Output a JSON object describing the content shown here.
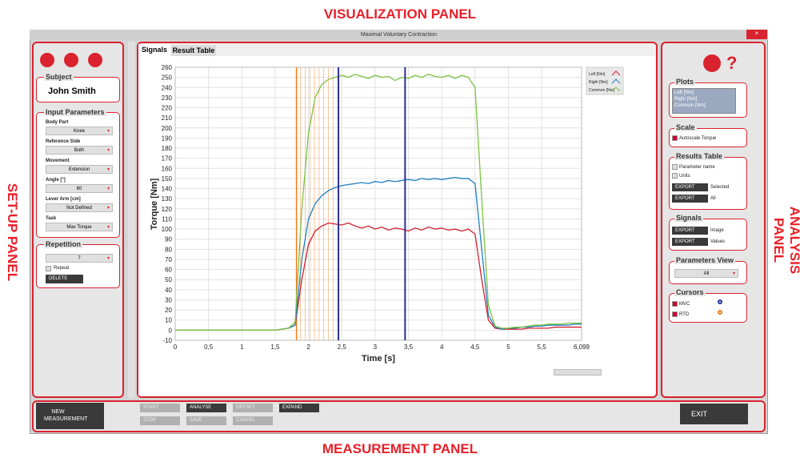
{
  "panel_labels": {
    "visualization": "VISUALIZATION PANEL",
    "setup": "SET-UP PANEL",
    "analysis": "ANALYSIS PANEL",
    "measurement": "MEASUREMENT PANEL"
  },
  "window_title": "Maximal Voluntary Contraction",
  "setup": {
    "subject_legend": "Subject",
    "subject_name": "John Smith",
    "input_legend": "Input Parameters",
    "fields": [
      {
        "label": "Body Part",
        "value": "Knee"
      },
      {
        "label": "Reference Side",
        "value": "Both"
      },
      {
        "label": "Movement",
        "value": "Extension"
      },
      {
        "label": "Angle [°]",
        "value": "60"
      },
      {
        "label": "Lever Arm [cm]",
        "value": "Not Defined"
      },
      {
        "label": "Task",
        "value": "Max Torque"
      }
    ],
    "repetition_legend": "Repetition",
    "repetition_value": "7",
    "repeat_label": "Repeat",
    "delete_button": "DELETE"
  },
  "tabs": [
    "Signals",
    "Result Table"
  ],
  "chart_data": {
    "type": "line",
    "ylabel": "Torque [Nm]",
    "xlabel": "Time [s]",
    "xlim": [
      0,
      6.099
    ],
    "ylim": [
      -10,
      260
    ],
    "yticks": [
      -10,
      0,
      10,
      20,
      30,
      40,
      50,
      60,
      70,
      80,
      90,
      100,
      110,
      120,
      130,
      140,
      150,
      160,
      170,
      180,
      190,
      200,
      210,
      220,
      230,
      240,
      250,
      260
    ],
    "xticks": [
      0,
      {
        "value": 0.5,
        "label": "0,5"
      },
      1,
      {
        "value": 1.5,
        "label": "1,5"
      },
      2,
      {
        "value": 2.5,
        "label": "2,5"
      },
      3,
      {
        "value": 3.5,
        "label": "3,5"
      },
      4,
      {
        "value": 4.5,
        "label": "4,5"
      },
      5,
      {
        "value": 5.5,
        "label": "5,5"
      },
      {
        "value": 6.099,
        "label": "6,099"
      }
    ],
    "grid": true,
    "x": [
      0,
      0.1,
      0.2,
      0.3,
      0.4,
      0.5,
      0.6,
      0.7,
      0.8,
      0.9,
      1.0,
      1.1,
      1.2,
      1.3,
      1.4,
      1.5,
      1.6,
      1.7,
      1.8,
      1.9,
      2.0,
      2.1,
      2.2,
      2.3,
      2.4,
      2.5,
      2.6,
      2.7,
      2.8,
      2.9,
      3.0,
      3.1,
      3.2,
      3.3,
      3.4,
      3.5,
      3.6,
      3.7,
      3.8,
      3.9,
      4.0,
      4.1,
      4.2,
      4.3,
      4.4,
      4.5,
      4.6,
      4.7,
      4.8,
      4.9,
      5.0,
      5.1,
      5.2,
      5.3,
      5.4,
      5.5,
      5.6,
      5.7,
      5.8,
      5.9,
      6.0,
      6.099
    ],
    "series": [
      {
        "name": "Left [Nm]",
        "color": "#d0202e",
        "values": [
          0,
          0,
          0,
          0,
          0,
          0,
          0,
          0,
          0,
          0,
          0,
          0,
          0,
          0,
          0,
          0,
          1,
          2,
          5,
          50,
          85,
          98,
          103,
          106,
          105,
          104,
          106,
          103,
          101,
          103,
          100,
          102,
          99,
          101,
          100,
          98,
          101,
          99,
          102,
          100,
          101,
          99,
          100,
          98,
          100,
          95,
          50,
          10,
          2,
          1,
          1,
          1,
          1,
          2,
          2,
          2,
          2,
          3,
          3,
          3,
          3,
          3
        ]
      },
      {
        "name": "Right [Nm]",
        "color": "#1f7fc0",
        "values": [
          0,
          0,
          0,
          0,
          0,
          0,
          0,
          0,
          0,
          0,
          0,
          0,
          0,
          0,
          0,
          0,
          1,
          2,
          5,
          70,
          110,
          125,
          133,
          138,
          141,
          143,
          144,
          145,
          146,
          145,
          147,
          146,
          148,
          147,
          148,
          149,
          148,
          150,
          149,
          150,
          149,
          150,
          151,
          150,
          150,
          145,
          80,
          15,
          3,
          1,
          2,
          2,
          3,
          3,
          4,
          4,
          5,
          5,
          5,
          5,
          6,
          6
        ]
      },
      {
        "name": "Common [Nm]",
        "color": "#7cc242",
        "values": [
          0,
          0,
          0,
          0,
          0,
          0,
          0,
          0,
          0,
          0,
          0,
          0,
          0,
          0,
          0,
          0,
          1,
          2,
          8,
          120,
          195,
          230,
          243,
          248,
          250,
          252,
          250,
          253,
          251,
          249,
          252,
          250,
          251,
          247,
          250,
          249,
          252,
          250,
          253,
          251,
          250,
          252,
          249,
          252,
          250,
          240,
          130,
          25,
          4,
          2,
          2,
          3,
          3,
          4,
          5,
          5,
          6,
          6,
          6,
          7,
          7,
          7
        ]
      }
    ],
    "legend": "upper right",
    "cursors": {
      "mvc": [
        2.45,
        3.45
      ],
      "mvc_color": "#2b2f8f",
      "rtd": [
        1.82,
        1.88,
        1.95,
        2.02,
        2.09,
        2.16,
        2.23,
        2.3,
        2.37
      ],
      "rtd_color": "#f07d1a"
    }
  },
  "analysis": {
    "plots_legend": "Plots",
    "scale_legend": "Scale",
    "autoscale_label": "Autoscale Torque",
    "results_legend": "Results Table",
    "parameter_name_label": "Parameter name",
    "units_label": "Units",
    "export_label": "EXPORT",
    "selected_label": "Selected",
    "all_label": "All",
    "signals_legend": "Signals",
    "image_label": "Image",
    "values_label": "Values",
    "parameters_view_legend": "Parameters View",
    "parameters_view_value": "All",
    "cursors_legend": "Cursors",
    "mvc_label": "MVC",
    "rtd_label": "RTD"
  },
  "measurement": {
    "new_measurement": "NEW MEASUREMENT",
    "buttons": [
      "START",
      "ANALYSE",
      "OFFSET",
      "EXPAND",
      "STOP",
      "SAVE",
      "CANCEL"
    ],
    "exit": "EXIT"
  }
}
